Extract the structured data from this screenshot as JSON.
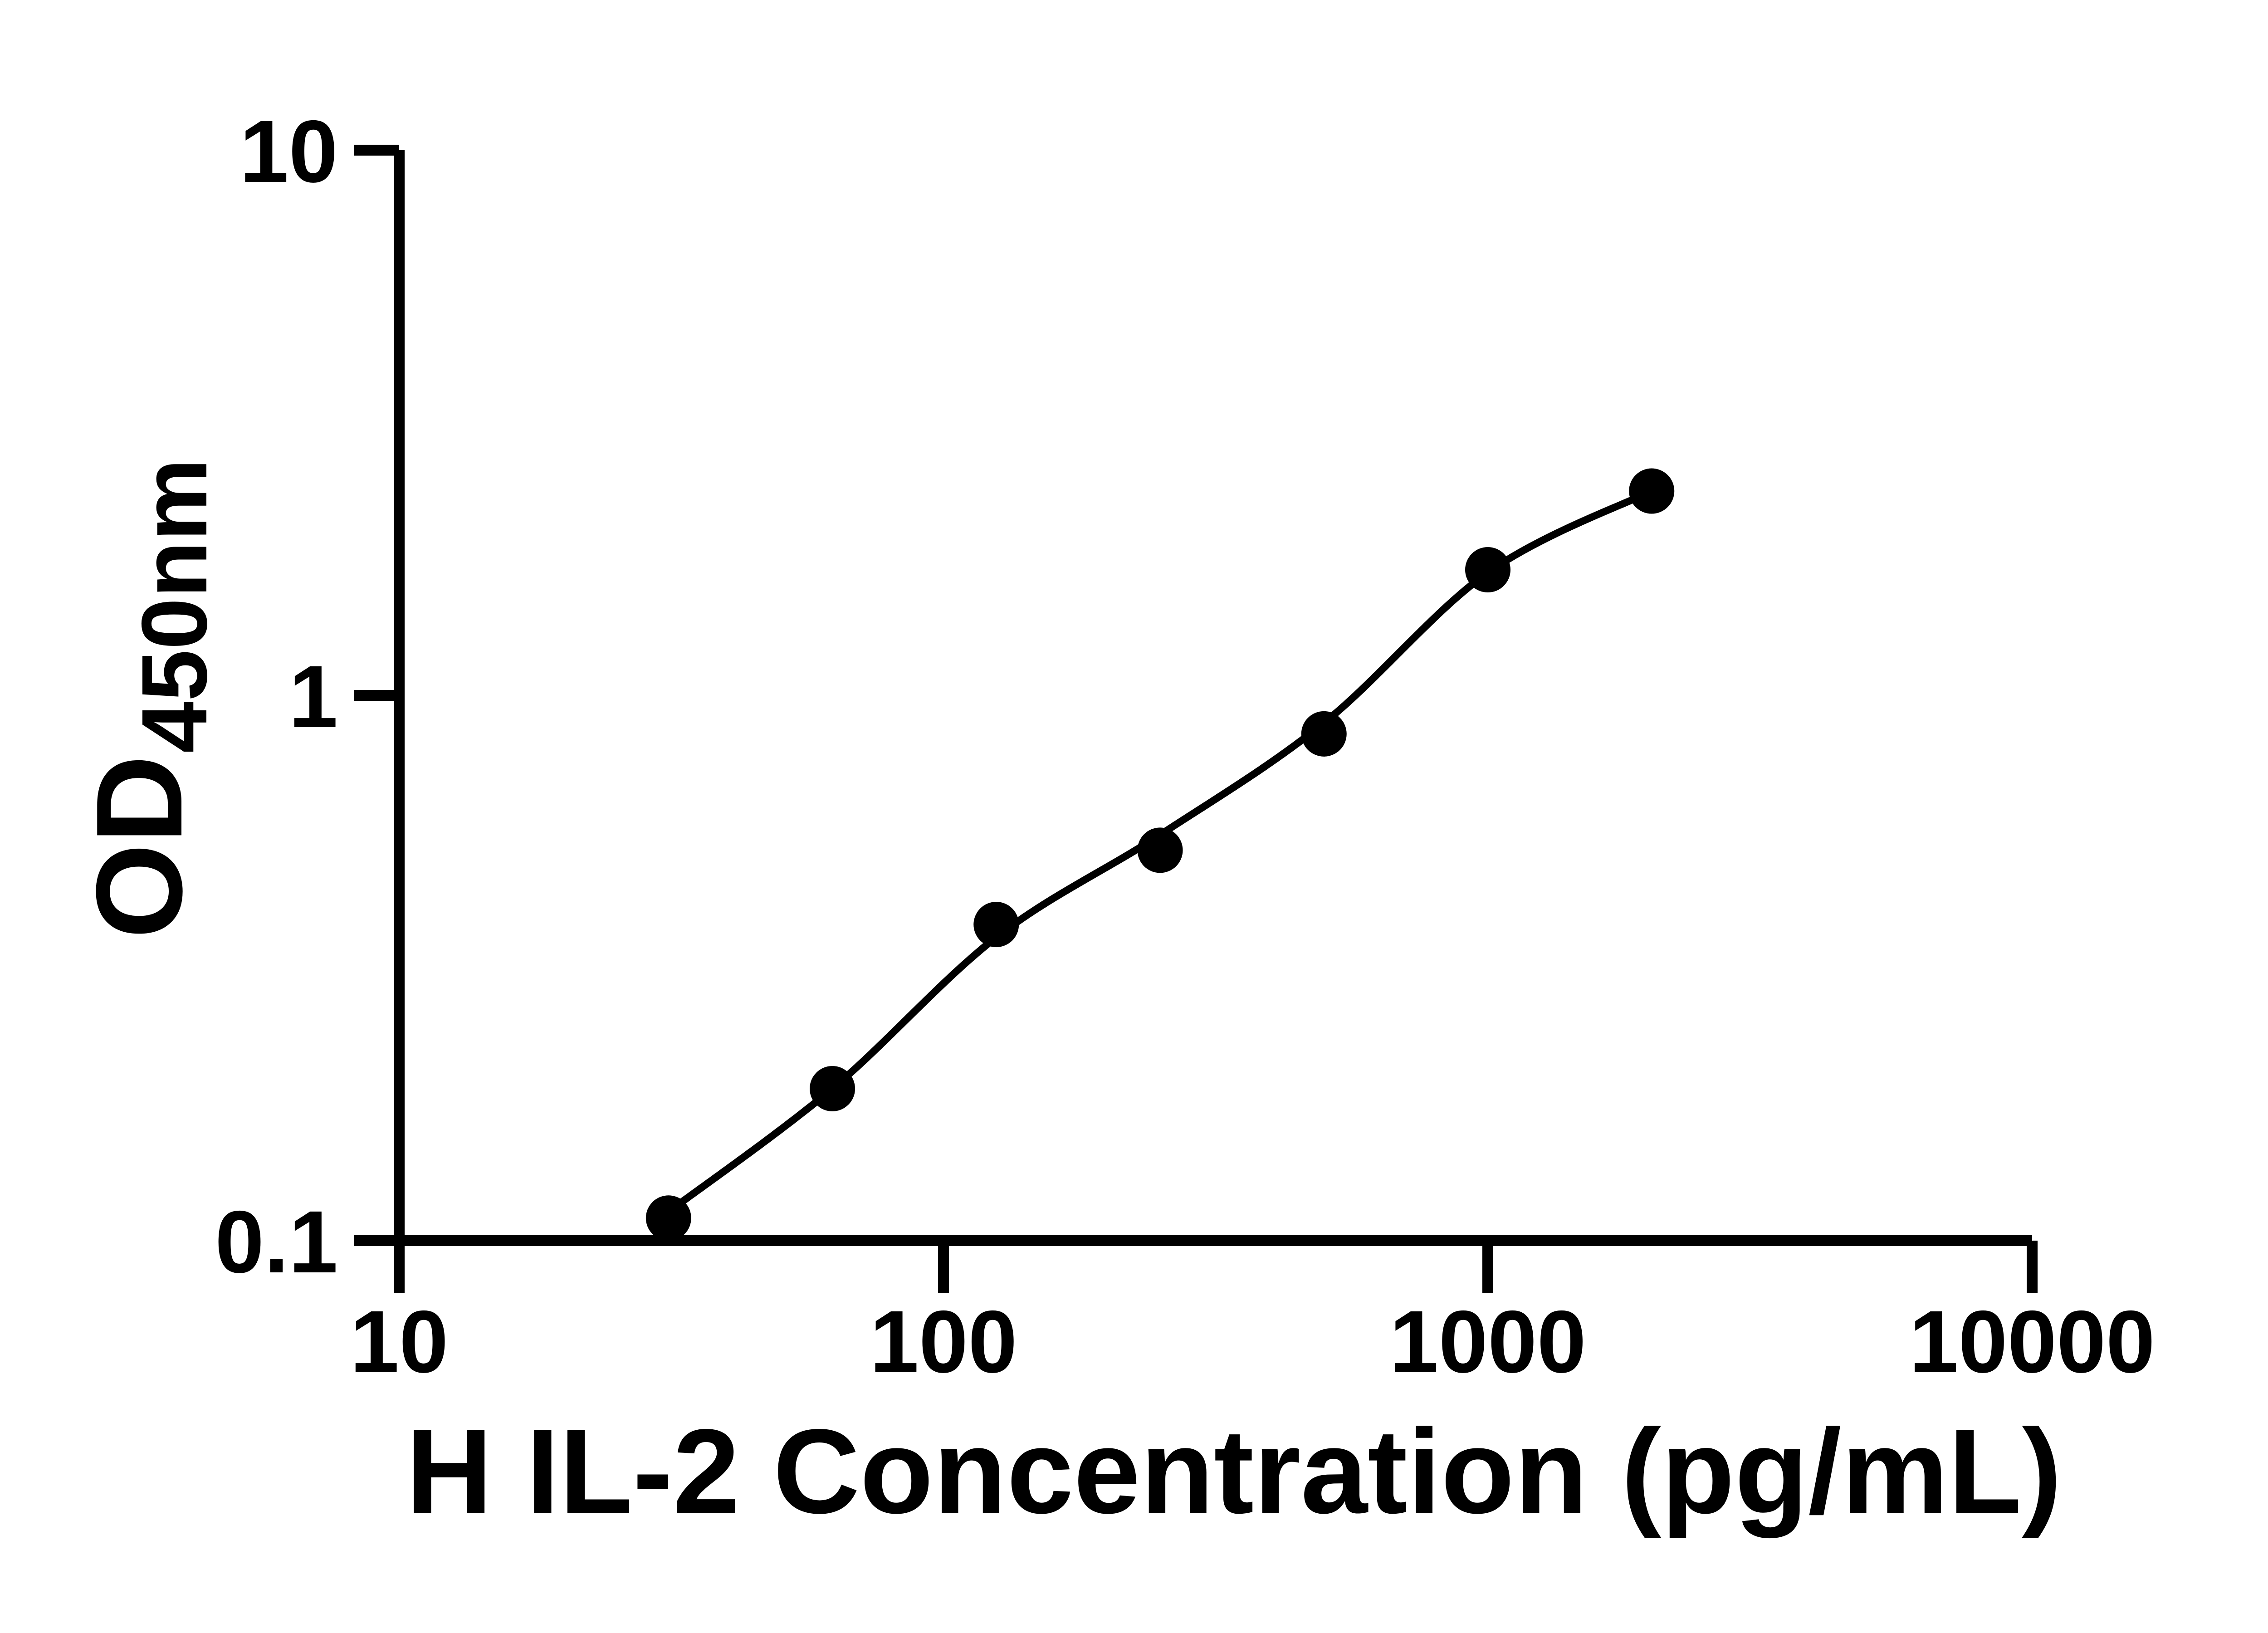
{
  "figure": {
    "background_color": "#ffffff",
    "foreground_color": "#000000"
  },
  "chart_data": {
    "type": "scatter",
    "subtype": "ELISA standard curve with fitted line, log-log axes",
    "title": "",
    "xlabel": "H IL-2 Concentration (pg/mL)",
    "ylabel": "OD",
    "ylabel_subscript": "450nm",
    "x_scale": "log10",
    "y_scale": "log10",
    "xlim": [
      10,
      10000
    ],
    "ylim": [
      0.1,
      10
    ],
    "x_ticks": {
      "values": [
        10,
        100,
        1000,
        10000
      ],
      "labels": [
        "10",
        "100",
        "1000",
        "10000"
      ]
    },
    "y_ticks": {
      "values": [
        0.1,
        1,
        10
      ],
      "labels": [
        "0.1",
        "1",
        "10"
      ]
    },
    "grid": false,
    "legend": "none",
    "marker": {
      "shape": "circle",
      "color": "#000000"
    },
    "series": [
      {
        "name": "standard-points",
        "x": [
          31.25,
          62.5,
          125,
          250,
          500,
          1000,
          2000
        ],
        "y": [
          0.11,
          0.19,
          0.38,
          0.52,
          0.85,
          1.7,
          2.37
        ]
      }
    ],
    "fit_curve": {
      "name": "fitted-standard-curve",
      "style": "solid",
      "color": "#000000",
      "x": [
        31.25,
        62.5,
        125,
        250,
        500,
        1000,
        2000
      ],
      "y": [
        0.113,
        0.19,
        0.36,
        0.555,
        0.89,
        1.68,
        2.37
      ]
    }
  }
}
